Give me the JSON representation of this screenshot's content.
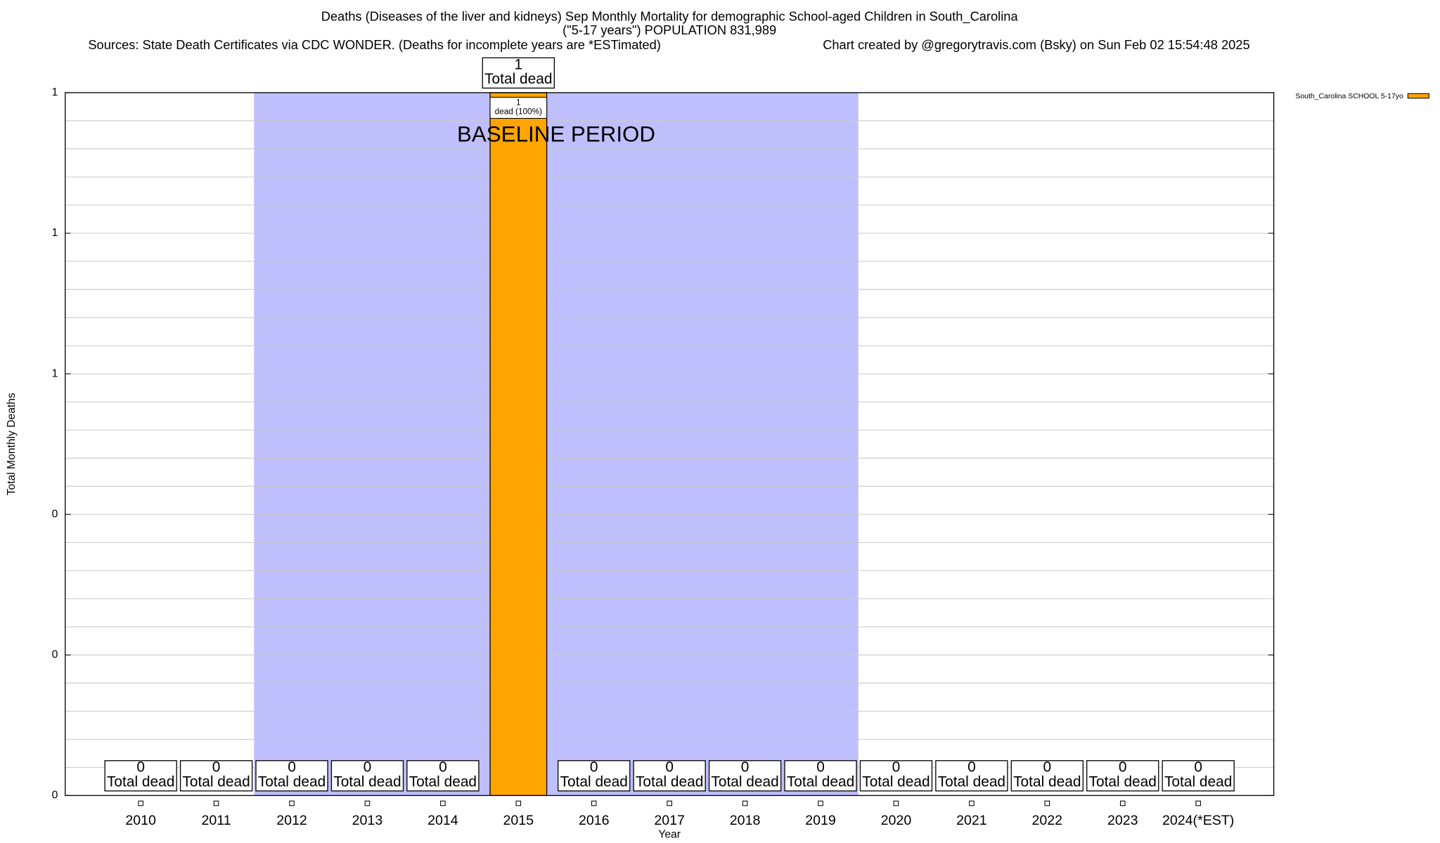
{
  "chart_data": {
    "type": "bar",
    "title": "Deaths (Diseases of the liver and kidneys) Sep Monthly Mortality for demographic School-aged Children in South_Carolina",
    "subtitle": "(\"5-17 years\") POPULATION 831,989",
    "source": "Sources: State Death Certificates via CDC WONDER. (Deaths for incomplete years are *ESTimated)",
    "credit": "Chart created by @gregorytravis.com (Bsky) on Sun Feb 02 15:54:48 2025",
    "x_label": "Year",
    "y_label": "Total Monthly Deaths",
    "categories": [
      "2010",
      "2011",
      "2012",
      "2013",
      "2014",
      "2015",
      "2016",
      "2017",
      "2018",
      "2019",
      "2020",
      "2021",
      "2022",
      "2023",
      "2024(*EST)"
    ],
    "series": [
      {
        "name": "South_Carolina SCHOOL 5-17yo",
        "color": "#ffa500",
        "values": [
          0,
          0,
          0,
          0,
          0,
          1,
          0,
          0,
          0,
          0,
          0,
          0,
          0,
          0,
          0
        ]
      }
    ],
    "total_label": "Total dead",
    "segment_labels": [
      null,
      null,
      null,
      null,
      null,
      "dead (100%)",
      null,
      null,
      null,
      null,
      null,
      null,
      null,
      null,
      null
    ],
    "baseline_period": {
      "label": "BASELINE PERIOD",
      "start": "2012",
      "end": "2019",
      "color": "#bfbffd"
    },
    "ylim": [
      0,
      1
    ],
    "yticks": [
      0,
      {
        "value": 0.2,
        "label": "0"
      },
      {
        "value": 0.4,
        "label": "0"
      },
      {
        "value": 0.6,
        "label": "1"
      },
      {
        "value": 0.8,
        "label": "1"
      },
      1
    ],
    "minor_yticks": [
      0.04,
      0.08,
      0.12,
      0.16,
      0.24,
      0.28,
      0.32,
      0.36,
      0.44,
      0.48,
      0.52,
      0.56,
      0.64,
      0.68,
      0.72,
      0.76,
      0.84,
      0.88,
      0.92,
      0.96
    ],
    "grid": true,
    "legend_position": "top-right"
  }
}
